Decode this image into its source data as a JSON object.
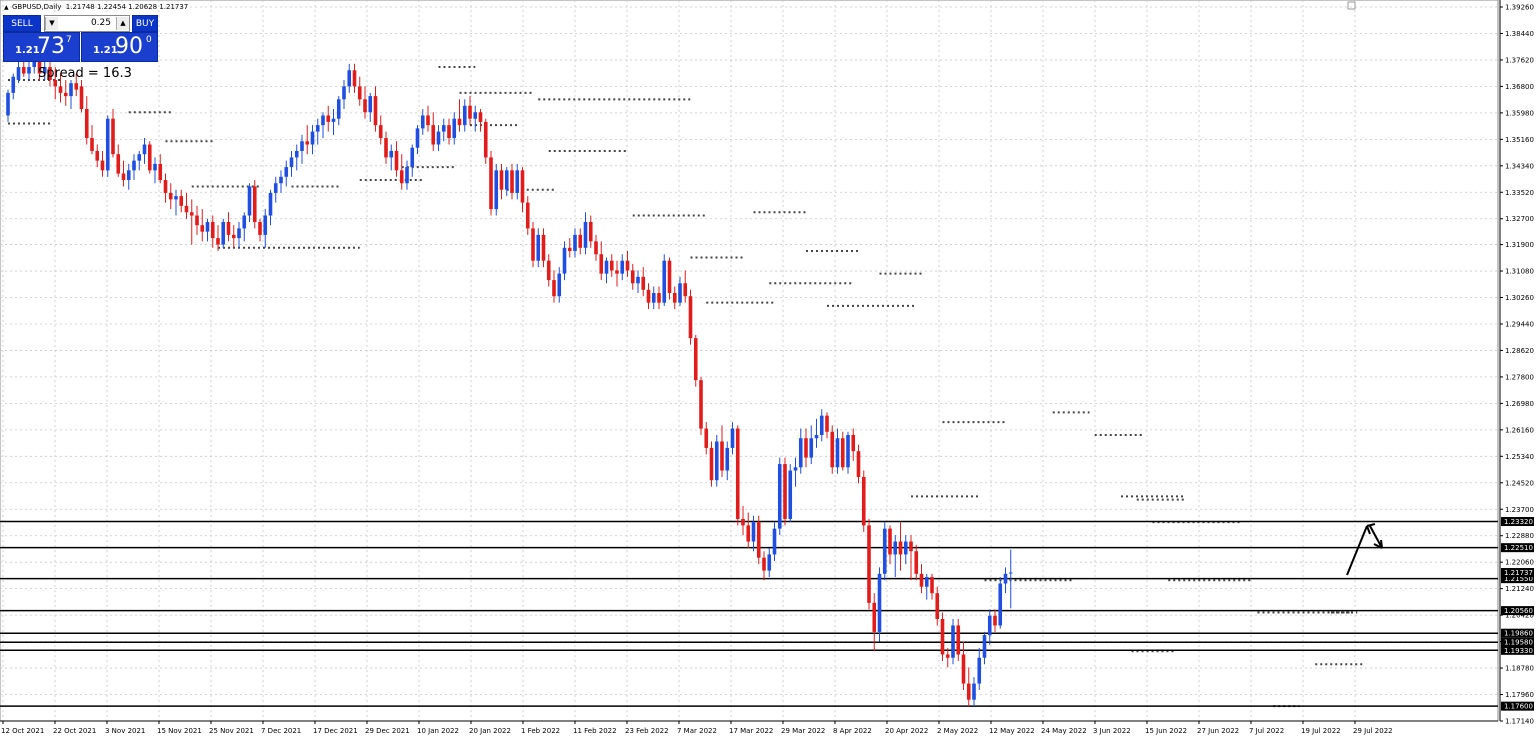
{
  "header": {
    "symbol_timeframe": "GBPUSD,Daily",
    "ohlc": "1.21748 1.22454 1.20628 1.21737",
    "icon": "triangle-up-icon"
  },
  "one_click": {
    "sell_label": "SELL",
    "buy_label": "BUY",
    "lot": "0.25",
    "sell_prefix": "1.21",
    "sell_big": "73",
    "sell_sup": "7",
    "buy_prefix": "1.21",
    "buy_big": "90",
    "buy_sup": "0",
    "spread_text": "Spread = 16.3"
  },
  "colors": {
    "bull": "#1f4ee0",
    "bear": "#e21b1b",
    "grid": "#c8c8c8",
    "dots": "#444444"
  },
  "chart_data": {
    "type": "candlestick",
    "symbol": "GBPUSD",
    "timeframe": "Daily",
    "ylim": [
      1.1714,
      1.3926
    ],
    "y_ticks": [
      "1.39260",
      "1.38440",
      "1.37620",
      "1.36800",
      "1.35980",
      "1.35160",
      "1.34340",
      "1.33520",
      "1.32700",
      "1.31900",
      "1.31080",
      "1.30260",
      "1.29440",
      "1.28620",
      "1.27800",
      "1.26980",
      "1.26160",
      "1.25340",
      "1.24520",
      "1.23700",
      "1.22880",
      "1.22060",
      "1.21240",
      "1.20420",
      "1.19600",
      "1.18780",
      "1.17960",
      "1.17140"
    ],
    "x_ticks": [
      "12 Oct 2021",
      "22 Oct 2021",
      "3 Nov 2021",
      "15 Nov 2021",
      "25 Nov 2021",
      "7 Dec 2021",
      "17 Dec 2021",
      "29 Dec 2021",
      "10 Jan 2022",
      "20 Jan 2022",
      "1 Feb 2022",
      "11 Feb 2022",
      "23 Feb 2022",
      "7 Mar 2022",
      "17 Mar 2022",
      "29 Mar 2022",
      "8 Apr 2022",
      "20 Apr 2022",
      "2 May 2022",
      "12 May 2022",
      "24 May 2022",
      "3 Jun 2022",
      "15 Jun 2022",
      "27 Jun 2022",
      "7 Jul 2022",
      "19 Jul 2022",
      "29 Jul 2022"
    ],
    "levels": [
      {
        "price": 1.2332,
        "label": "1.23320"
      },
      {
        "price": 1.2251,
        "label": "1.22510"
      },
      {
        "price": 1.2155,
        "label": "1.21550"
      },
      {
        "price": 1.2056,
        "label": "1.20560"
      },
      {
        "price": 1.1986,
        "label": "1.19860"
      },
      {
        "price": 1.1958,
        "label": "1.19580"
      },
      {
        "price": 1.1933,
        "label": "1.19330"
      },
      {
        "price": 1.176,
        "label": "1.17600"
      }
    ],
    "current_price": {
      "price": 1.2174,
      "label": "1.21737"
    },
    "fractal_dots": [
      {
        "price": 1.37,
        "from": 0,
        "to": 10
      },
      {
        "price": 1.3565,
        "from": 0,
        "to": 8
      },
      {
        "price": 1.36,
        "from": 23,
        "to": 31
      },
      {
        "price": 1.351,
        "from": 30,
        "to": 39
      },
      {
        "price": 1.337,
        "from": 35,
        "to": 48
      },
      {
        "price": 1.318,
        "from": 40,
        "to": 67
      },
      {
        "price": 1.337,
        "from": 54,
        "to": 63
      },
      {
        "price": 1.339,
        "from": 67,
        "to": 79
      },
      {
        "price": 1.343,
        "from": 75,
        "to": 85
      },
      {
        "price": 1.374,
        "from": 82,
        "to": 89
      },
      {
        "price": 1.366,
        "from": 86,
        "to": 100
      },
      {
        "price": 1.364,
        "from": 101,
        "to": 130
      },
      {
        "price": 1.356,
        "from": 88,
        "to": 97
      },
      {
        "price": 1.336,
        "from": 95,
        "to": 104
      },
      {
        "price": 1.348,
        "from": 103,
        "to": 118
      },
      {
        "price": 1.328,
        "from": 119,
        "to": 133
      },
      {
        "price": 1.329,
        "from": 142,
        "to": 152
      },
      {
        "price": 1.315,
        "from": 130,
        "to": 140
      },
      {
        "price": 1.301,
        "from": 133,
        "to": 146
      },
      {
        "price": 1.307,
        "from": 145,
        "to": 161
      },
      {
        "price": 1.317,
        "from": 152,
        "to": 162
      },
      {
        "price": 1.3,
        "from": 156,
        "to": 173
      },
      {
        "price": 1.31,
        "from": 166,
        "to": 174
      },
      {
        "price": 1.264,
        "from": 178,
        "to": 190
      },
      {
        "price": 1.241,
        "from": 172,
        "to": 185
      },
      {
        "price": 1.267,
        "from": 199,
        "to": 206
      },
      {
        "price": 1.26,
        "from": 207,
        "to": 216
      },
      {
        "price": 1.241,
        "from": 212,
        "to": 224
      },
      {
        "price": 1.215,
        "from": 186,
        "to": 203
      },
      {
        "price": 1.24,
        "from": 215,
        "to": 224
      },
      {
        "price": 1.233,
        "from": 218,
        "to": 235
      },
      {
        "price": 1.215,
        "from": 221,
        "to": 237
      },
      {
        "price": 1.193,
        "from": 214,
        "to": 222
      },
      {
        "price": 1.205,
        "from": 238,
        "to": 256
      },
      {
        "price": 1.176,
        "from": 241,
        "to": 246
      },
      {
        "price": 1.189,
        "from": 249,
        "to": 258
      },
      {
        "price": 1.205,
        "from": 252,
        "to": 257
      }
    ],
    "candles": [
      [
        1.359,
        1.367,
        1.357,
        1.366
      ],
      [
        1.366,
        1.372,
        1.364,
        1.371
      ],
      [
        1.37,
        1.376,
        1.369,
        1.374
      ],
      [
        1.374,
        1.378,
        1.371,
        1.372
      ],
      [
        1.372,
        1.376,
        1.37,
        1.374
      ],
      [
        1.374,
        1.379,
        1.372,
        1.376
      ],
      [
        1.376,
        1.377,
        1.37,
        1.372
      ],
      [
        1.372,
        1.376,
        1.37,
        1.374
      ],
      [
        1.374,
        1.377,
        1.368,
        1.37
      ],
      [
        1.37,
        1.374,
        1.364,
        1.368
      ],
      [
        1.368,
        1.372,
        1.363,
        1.366
      ],
      [
        1.366,
        1.37,
        1.362,
        1.365
      ],
      [
        1.365,
        1.37,
        1.361,
        1.369
      ],
      [
        1.369,
        1.372,
        1.365,
        1.367
      ],
      [
        1.368,
        1.37,
        1.36,
        1.361
      ],
      [
        1.361,
        1.365,
        1.35,
        1.352
      ],
      [
        1.352,
        1.356,
        1.347,
        1.348
      ],
      [
        1.348,
        1.35,
        1.343,
        1.345
      ],
      [
        1.345,
        1.348,
        1.34,
        1.342
      ],
      [
        1.342,
        1.359,
        1.34,
        1.358
      ],
      [
        1.358,
        1.361,
        1.346,
        1.347
      ],
      [
        1.347,
        1.35,
        1.34,
        1.341
      ],
      [
        1.341,
        1.345,
        1.337,
        1.339
      ],
      [
        1.339,
        1.344,
        1.336,
        1.342
      ],
      [
        1.342,
        1.347,
        1.339,
        1.345
      ],
      [
        1.345,
        1.348,
        1.342,
        1.347
      ],
      [
        1.347,
        1.352,
        1.344,
        1.35
      ],
      [
        1.35,
        1.351,
        1.341,
        1.342
      ],
      [
        1.342,
        1.346,
        1.338,
        1.344
      ],
      [
        1.344,
        1.347,
        1.338,
        1.339
      ],
      [
        1.339,
        1.341,
        1.332,
        1.335
      ],
      [
        1.335,
        1.338,
        1.33,
        1.333
      ],
      [
        1.333,
        1.336,
        1.328,
        1.334
      ],
      [
        1.334,
        1.336,
        1.329,
        1.331
      ],
      [
        1.331,
        1.335,
        1.327,
        1.329
      ],
      [
        1.329,
        1.333,
        1.319,
        1.328
      ],
      [
        1.328,
        1.331,
        1.322,
        1.325
      ],
      [
        1.325,
        1.33,
        1.32,
        1.323
      ],
      [
        1.323,
        1.327,
        1.32,
        1.326
      ],
      [
        1.326,
        1.328,
        1.318,
        1.321
      ],
      [
        1.321,
        1.325,
        1.317,
        1.319
      ],
      [
        1.319,
        1.327,
        1.318,
        1.326
      ],
      [
        1.326,
        1.329,
        1.32,
        1.322
      ],
      [
        1.322,
        1.325,
        1.318,
        1.321
      ],
      [
        1.321,
        1.326,
        1.318,
        1.324
      ],
      [
        1.324,
        1.329,
        1.32,
        1.328
      ],
      [
        1.328,
        1.338,
        1.326,
        1.337
      ],
      [
        1.337,
        1.339,
        1.324,
        1.326
      ],
      [
        1.326,
        1.327,
        1.32,
        1.322
      ],
      [
        1.322,
        1.33,
        1.318,
        1.328
      ],
      [
        1.328,
        1.336,
        1.325,
        1.335
      ],
      [
        1.335,
        1.34,
        1.332,
        1.338
      ],
      [
        1.338,
        1.342,
        1.335,
        1.34
      ],
      [
        1.34,
        1.345,
        1.337,
        1.343
      ],
      [
        1.343,
        1.348,
        1.34,
        1.346
      ],
      [
        1.346,
        1.35,
        1.342,
        1.348
      ],
      [
        1.348,
        1.353,
        1.344,
        1.351
      ],
      [
        1.351,
        1.356,
        1.347,
        1.35
      ],
      [
        1.35,
        1.356,
        1.347,
        1.354
      ],
      [
        1.354,
        1.358,
        1.35,
        1.356
      ],
      [
        1.356,
        1.36,
        1.352,
        1.359
      ],
      [
        1.359,
        1.362,
        1.354,
        1.357
      ],
      [
        1.357,
        1.361,
        1.353,
        1.358
      ],
      [
        1.358,
        1.365,
        1.356,
        1.364
      ],
      [
        1.364,
        1.37,
        1.361,
        1.368
      ],
      [
        1.368,
        1.375,
        1.366,
        1.373
      ],
      [
        1.373,
        1.375,
        1.366,
        1.368
      ],
      [
        1.368,
        1.371,
        1.362,
        1.364
      ],
      [
        1.364,
        1.368,
        1.358,
        1.36
      ],
      [
        1.36,
        1.366,
        1.357,
        1.365
      ],
      [
        1.365,
        1.368,
        1.354,
        1.356
      ],
      [
        1.356,
        1.359,
        1.35,
        1.352
      ],
      [
        1.352,
        1.354,
        1.344,
        1.346
      ],
      [
        1.346,
        1.35,
        1.342,
        1.348
      ],
      [
        1.348,
        1.351,
        1.34,
        1.342
      ],
      [
        1.342,
        1.347,
        1.336,
        1.338
      ],
      [
        1.338,
        1.345,
        1.336,
        1.343
      ],
      [
        1.343,
        1.35,
        1.34,
        1.349
      ],
      [
        1.349,
        1.356,
        1.347,
        1.355
      ],
      [
        1.355,
        1.361,
        1.353,
        1.359
      ],
      [
        1.359,
        1.362,
        1.354,
        1.356
      ],
      [
        1.356,
        1.36,
        1.348,
        1.35
      ],
      [
        1.35,
        1.356,
        1.348,
        1.354
      ],
      [
        1.354,
        1.358,
        1.351,
        1.356
      ],
      [
        1.356,
        1.358,
        1.35,
        1.352
      ],
      [
        1.352,
        1.36,
        1.35,
        1.358
      ],
      [
        1.358,
        1.364,
        1.354,
        1.356
      ],
      [
        1.356,
        1.364,
        1.354,
        1.362
      ],
      [
        1.362,
        1.365,
        1.356,
        1.358
      ],
      [
        1.358,
        1.362,
        1.354,
        1.36
      ],
      [
        1.36,
        1.361,
        1.354,
        1.357
      ],
      [
        1.357,
        1.358,
        1.344,
        1.346
      ],
      [
        1.346,
        1.348,
        1.328,
        1.33
      ],
      [
        1.33,
        1.344,
        1.328,
        1.342
      ],
      [
        1.342,
        1.344,
        1.333,
        1.336
      ],
      [
        1.336,
        1.343,
        1.334,
        1.342
      ],
      [
        1.342,
        1.344,
        1.333,
        1.335
      ],
      [
        1.335,
        1.344,
        1.333,
        1.342
      ],
      [
        1.342,
        1.343,
        1.329,
        1.332
      ],
      [
        1.332,
        1.334,
        1.322,
        1.324
      ],
      [
        1.324,
        1.326,
        1.312,
        1.314
      ],
      [
        1.314,
        1.324,
        1.312,
        1.322
      ],
      [
        1.322,
        1.324,
        1.312,
        1.314
      ],
      [
        1.314,
        1.316,
        1.306,
        1.308
      ],
      [
        1.308,
        1.311,
        1.301,
        1.303
      ],
      [
        1.303,
        1.312,
        1.301,
        1.31
      ],
      [
        1.31,
        1.32,
        1.308,
        1.318
      ],
      [
        1.318,
        1.321,
        1.315,
        1.317
      ],
      [
        1.317,
        1.324,
        1.315,
        1.322
      ],
      [
        1.322,
        1.324,
        1.316,
        1.318
      ],
      [
        1.318,
        1.329,
        1.316,
        1.326
      ],
      [
        1.326,
        1.328,
        1.318,
        1.32
      ],
      [
        1.32,
        1.322,
        1.314,
        1.316
      ],
      [
        1.316,
        1.32,
        1.308,
        1.31
      ],
      [
        1.31,
        1.315,
        1.307,
        1.314
      ],
      [
        1.314,
        1.316,
        1.309,
        1.311
      ],
      [
        1.311,
        1.314,
        1.306,
        1.31
      ],
      [
        1.31,
        1.316,
        1.308,
        1.314
      ],
      [
        1.314,
        1.317,
        1.309,
        1.311
      ],
      [
        1.311,
        1.313,
        1.305,
        1.307
      ],
      [
        1.307,
        1.311,
        1.304,
        1.309
      ],
      [
        1.309,
        1.312,
        1.303,
        1.305
      ],
      [
        1.305,
        1.307,
        1.299,
        1.301
      ],
      [
        1.301,
        1.306,
        1.299,
        1.304
      ],
      [
        1.304,
        1.306,
        1.299,
        1.301
      ],
      [
        1.301,
        1.316,
        1.3,
        1.314
      ],
      [
        1.314,
        1.315,
        1.302,
        1.304
      ],
      [
        1.304,
        1.306,
        1.299,
        1.301
      ],
      [
        1.301,
        1.309,
        1.3,
        1.307
      ],
      [
        1.307,
        1.311,
        1.301,
        1.303
      ],
      [
        1.303,
        1.305,
        1.288,
        1.29
      ],
      [
        1.29,
        1.291,
        1.275,
        1.277
      ],
      [
        1.277,
        1.278,
        1.26,
        1.262
      ],
      [
        1.262,
        1.264,
        1.254,
        1.256
      ],
      [
        1.256,
        1.258,
        1.244,
        1.246
      ],
      [
        1.246,
        1.26,
        1.244,
        1.258
      ],
      [
        1.258,
        1.263,
        1.247,
        1.249
      ],
      [
        1.249,
        1.258,
        1.246,
        1.256
      ],
      [
        1.256,
        1.264,
        1.254,
        1.262
      ],
      [
        1.262,
        1.263,
        1.232,
        1.234
      ],
      [
        1.234,
        1.238,
        1.229,
        1.232
      ],
      [
        1.232,
        1.236,
        1.225,
        1.227
      ],
      [
        1.227,
        1.235,
        1.224,
        1.233
      ],
      [
        1.233,
        1.235,
        1.22,
        1.222
      ],
      [
        1.222,
        1.224,
        1.215,
        1.218
      ],
      [
        1.218,
        1.225,
        1.216,
        1.223
      ],
      [
        1.223,
        1.233,
        1.221,
        1.231
      ],
      [
        1.231,
        1.253,
        1.229,
        1.251
      ],
      [
        1.251,
        1.253,
        1.232,
        1.234
      ],
      [
        1.234,
        1.251,
        1.233,
        1.249
      ],
      [
        1.249,
        1.253,
        1.244,
        1.25
      ],
      [
        1.25,
        1.262,
        1.248,
        1.259
      ],
      [
        1.259,
        1.262,
        1.25,
        1.253
      ],
      [
        1.253,
        1.263,
        1.251,
        1.259
      ],
      [
        1.259,
        1.265,
        1.256,
        1.26
      ],
      [
        1.26,
        1.268,
        1.258,
        1.266
      ],
      [
        1.266,
        1.267,
        1.259,
        1.261
      ],
      [
        1.261,
        1.263,
        1.248,
        1.25
      ],
      [
        1.25,
        1.262,
        1.248,
        1.259
      ],
      [
        1.259,
        1.261,
        1.249,
        1.25
      ],
      [
        1.25,
        1.261,
        1.248,
        1.26
      ],
      [
        1.26,
        1.262,
        1.252,
        1.255
      ],
      [
        1.255,
        1.257,
        1.245,
        1.247
      ],
      [
        1.247,
        1.249,
        1.23,
        1.232
      ],
      [
        1.232,
        1.234,
        1.206,
        1.208
      ],
      [
        1.208,
        1.211,
        1.193,
        1.199
      ],
      [
        1.199,
        1.219,
        1.196,
        1.217
      ],
      [
        1.217,
        1.233,
        1.215,
        1.231
      ],
      [
        1.231,
        1.232,
        1.22,
        1.223
      ],
      [
        1.223,
        1.229,
        1.216,
        1.227
      ],
      [
        1.227,
        1.233,
        1.218,
        1.223
      ],
      [
        1.223,
        1.229,
        1.22,
        1.227
      ],
      [
        1.227,
        1.229,
        1.215,
        1.224
      ],
      [
        1.224,
        1.226,
        1.215,
        1.217
      ],
      [
        1.217,
        1.22,
        1.211,
        1.213
      ],
      [
        1.213,
        1.217,
        1.209,
        1.216
      ],
      [
        1.216,
        1.217,
        1.209,
        1.211
      ],
      [
        1.211,
        1.213,
        1.201,
        1.203
      ],
      [
        1.203,
        1.205,
        1.19,
        1.192
      ],
      [
        1.192,
        1.194,
        1.188,
        1.191
      ],
      [
        1.191,
        1.203,
        1.189,
        1.201
      ],
      [
        1.201,
        1.203,
        1.19,
        1.192
      ],
      [
        1.192,
        1.196,
        1.181,
        1.183
      ],
      [
        1.183,
        1.188,
        1.176,
        1.178
      ],
      [
        1.178,
        1.185,
        1.176,
        1.183
      ],
      [
        1.183,
        1.194,
        1.181,
        1.191
      ],
      [
        1.191,
        1.199,
        1.189,
        1.198
      ],
      [
        1.198,
        1.206,
        1.195,
        1.204
      ],
      [
        1.204,
        1.206,
        1.199,
        1.201
      ],
      [
        1.201,
        1.216,
        1.2,
        1.214
      ],
      [
        1.214,
        1.219,
        1.211,
        1.217
      ],
      [
        1.2174,
        1.2245,
        1.2063,
        1.2174
      ]
    ]
  }
}
